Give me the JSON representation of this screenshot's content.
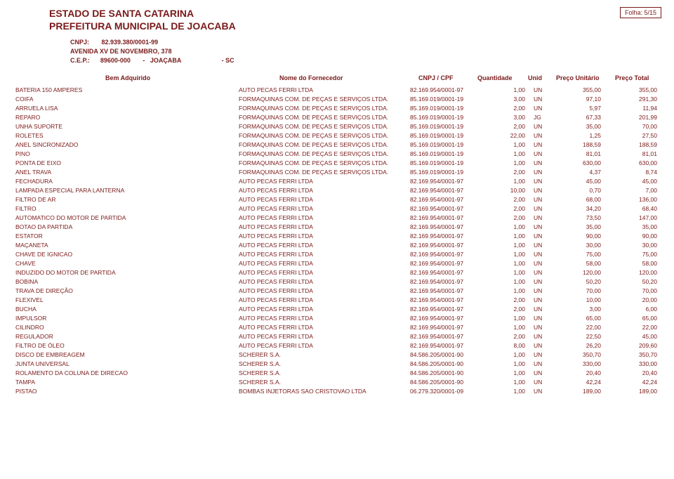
{
  "colors": {
    "text": "#7a1a1a",
    "background": "#ffffff"
  },
  "header": {
    "org_line1": "ESTADO DE SANTA CATARINA",
    "org_line2": "PREFEITURA MUNICIPAL DE JOACABA",
    "folha_label": "Folha: 5/15",
    "cnpj_line": "CNPJ:       82.939.380/0001-99",
    "addr_line": "AVENIDA XV DE NOVEMBRO, 378",
    "cep_line": "C.E.P.:      89600-000       -   JOAÇABA                       - SC"
  },
  "columns": {
    "bem": "Bem Adquirido",
    "forn": "Nome do Fornecedor",
    "cnpj": "CNPJ / CPF",
    "qtd": "Quantidade",
    "unid": "Unid",
    "unit": "Preço Unitário",
    "total": "Preço Total"
  },
  "rows": [
    {
      "bem": "BATERIA 150 AMPERES",
      "forn": "AUTO PECAS FERRI LTDA",
      "cnpj": "82.169.954/0001-97",
      "qtd": "1,00",
      "unid": "UN",
      "unit": "355,00",
      "total": "355,00"
    },
    {
      "bem": "COIFA",
      "forn": "FORMAQUINAS COM. DE PEÇAS E SERVIÇOS LTDA.",
      "cnpj": "85.169.019/0001-19",
      "qtd": "3,00",
      "unid": "UN",
      "unit": "97,10",
      "total": "291,30"
    },
    {
      "bem": "ARRUELA LISA",
      "forn": "FORMAQUINAS COM. DE PEÇAS E SERVIÇOS LTDA.",
      "cnpj": "85.169.019/0001-19",
      "qtd": "2,00",
      "unid": "UN",
      "unit": "5,97",
      "total": "11,94"
    },
    {
      "bem": "REPARO",
      "forn": "FORMAQUINAS COM. DE PEÇAS E SERVIÇOS LTDA.",
      "cnpj": "85.169.019/0001-19",
      "qtd": "3,00",
      "unid": "JG",
      "unit": "67,33",
      "total": "201,99"
    },
    {
      "bem": "UNHA SUPORTE",
      "forn": "FORMAQUINAS COM. DE PEÇAS E SERVIÇOS LTDA.",
      "cnpj": "85.169.019/0001-19",
      "qtd": "2,00",
      "unid": "UN",
      "unit": "35,00",
      "total": "70,00"
    },
    {
      "bem": "ROLETES",
      "forn": "FORMAQUINAS COM. DE PEÇAS E SERVIÇOS LTDA.",
      "cnpj": "85.169.019/0001-19",
      "qtd": "22,00",
      "unid": "UN",
      "unit": "1,25",
      "total": "27,50"
    },
    {
      "bem": "ANEL SINCRONIZADO",
      "forn": "FORMAQUINAS COM. DE PEÇAS E SERVIÇOS LTDA.",
      "cnpj": "85.169.019/0001-19",
      "qtd": "1,00",
      "unid": "UN",
      "unit": "188,59",
      "total": "188,59"
    },
    {
      "bem": "PINO",
      "forn": "FORMAQUINAS COM. DE PEÇAS E SERVIÇOS LTDA.",
      "cnpj": "85.169.019/0001-19",
      "qtd": "1,00",
      "unid": "UN",
      "unit": "81,01",
      "total": "81,01"
    },
    {
      "bem": "PONTA DE EIXO",
      "forn": "FORMAQUINAS COM. DE PEÇAS E SERVIÇOS LTDA.",
      "cnpj": "85.169.019/0001-19",
      "qtd": "1,00",
      "unid": "UN",
      "unit": "630,00",
      "total": "630,00"
    },
    {
      "bem": "ANEL TRAVA",
      "forn": "FORMAQUINAS COM. DE PEÇAS E SERVIÇOS LTDA.",
      "cnpj": "85.169.019/0001-19",
      "qtd": "2,00",
      "unid": "UN",
      "unit": "4,37",
      "total": "8,74"
    },
    {
      "bem": "FECHADURA",
      "forn": "AUTO PECAS FERRI LTDA",
      "cnpj": "82.169.954/0001-97",
      "qtd": "1,00",
      "unid": "UN",
      "unit": "45,00",
      "total": "45,00"
    },
    {
      "bem": "LAMPADA ESPECIAL PARA LANTERNA",
      "forn": "AUTO PECAS FERRI LTDA",
      "cnpj": "82.169.954/0001-97",
      "qtd": "10,00",
      "unid": "UN",
      "unit": "0,70",
      "total": "7,00"
    },
    {
      "bem": "FILTRO DE AR",
      "forn": "AUTO PECAS FERRI LTDA",
      "cnpj": "82.169.954/0001-97",
      "qtd": "2,00",
      "unid": "UN",
      "unit": "68,00",
      "total": "136,00"
    },
    {
      "bem": "FILTRO",
      "forn": "AUTO PECAS FERRI LTDA",
      "cnpj": "82.169.954/0001-97",
      "qtd": "2,00",
      "unid": "UN",
      "unit": "34,20",
      "total": "68,40"
    },
    {
      "bem": "AUTOMATICO DO MOTOR DE PARTIDA",
      "forn": "AUTO PECAS FERRI LTDA",
      "cnpj": "82.169.954/0001-97",
      "qtd": "2,00",
      "unid": "UN",
      "unit": "73,50",
      "total": "147,00"
    },
    {
      "bem": "BOTAO DA PARTIDA",
      "forn": "AUTO PECAS FERRI LTDA",
      "cnpj": "82.169.954/0001-97",
      "qtd": "1,00",
      "unid": "UN",
      "unit": "35,00",
      "total": "35,00"
    },
    {
      "bem": "ESTATOR",
      "forn": "AUTO PECAS FERRI LTDA",
      "cnpj": "82.169.954/0001-97",
      "qtd": "1,00",
      "unid": "UN",
      "unit": "90,00",
      "total": "90,00"
    },
    {
      "bem": "MAÇANETA",
      "forn": "AUTO PECAS FERRI LTDA",
      "cnpj": "82.169.954/0001-97",
      "qtd": "1,00",
      "unid": "UN",
      "unit": "30,00",
      "total": "30,00"
    },
    {
      "bem": "CHAVE DE IGNICAO",
      "forn": "AUTO PECAS FERRI LTDA",
      "cnpj": "82.169.954/0001-97",
      "qtd": "1,00",
      "unid": "UN",
      "unit": "75,00",
      "total": "75,00"
    },
    {
      "bem": "CHAVE",
      "forn": "AUTO PECAS FERRI LTDA",
      "cnpj": "82.169.954/0001-97",
      "qtd": "1,00",
      "unid": "UN",
      "unit": "58,00",
      "total": "58,00"
    },
    {
      "bem": "INDUZIDO DO MOTOR DE PARTIDA",
      "forn": "AUTO PECAS FERRI LTDA",
      "cnpj": "82.169.954/0001-97",
      "qtd": "1,00",
      "unid": "UN",
      "unit": "120,00",
      "total": "120,00"
    },
    {
      "bem": "BOBINA",
      "forn": "AUTO PECAS FERRI LTDA",
      "cnpj": "82.169.954/0001-97",
      "qtd": "1,00",
      "unid": "UN",
      "unit": "50,20",
      "total": "50,20"
    },
    {
      "bem": "TRAVA DE DIREÇÃO",
      "forn": "AUTO PECAS FERRI LTDA",
      "cnpj": "82.169.954/0001-97",
      "qtd": "1,00",
      "unid": "UN",
      "unit": "70,00",
      "total": "70,00"
    },
    {
      "bem": "FLEXIVEL",
      "forn": "AUTO PECAS FERRI LTDA",
      "cnpj": "82.169.954/0001-97",
      "qtd": "2,00",
      "unid": "UN",
      "unit": "10,00",
      "total": "20,00"
    },
    {
      "bem": "BUCHA",
      "forn": "AUTO PECAS FERRI LTDA",
      "cnpj": "82.169.954/0001-97",
      "qtd": "2,00",
      "unid": "UN",
      "unit": "3,00",
      "total": "6,00"
    },
    {
      "bem": "IMPULSOR",
      "forn": "AUTO PECAS FERRI LTDA",
      "cnpj": "82.169.954/0001-97",
      "qtd": "1,00",
      "unid": "UN",
      "unit": "65,00",
      "total": "65,00"
    },
    {
      "bem": "CILINDRO",
      "forn": "AUTO PECAS FERRI LTDA",
      "cnpj": "82.169.954/0001-97",
      "qtd": "1,00",
      "unid": "UN",
      "unit": "22,00",
      "total": "22,00"
    },
    {
      "bem": "REGULADOR",
      "forn": "AUTO PECAS FERRI LTDA",
      "cnpj": "82.169.954/0001-97",
      "qtd": "2,00",
      "unid": "UN",
      "unit": "22,50",
      "total": "45,00"
    },
    {
      "bem": "FILTRO DE ÓLEO",
      "forn": "AUTO PECAS FERRI LTDA",
      "cnpj": "82.169.954/0001-97",
      "qtd": "8,00",
      "unid": "UN",
      "unit": "26,20",
      "total": "209,60"
    },
    {
      "bem": "DISCO DE EMBREAGEM",
      "forn": "SCHERER S.A.",
      "cnpj": "84.586.205/0001-90",
      "qtd": "1,00",
      "unid": "UN",
      "unit": "350,70",
      "total": "350,70"
    },
    {
      "bem": "JUNTA UNIVERSAL",
      "forn": "SCHERER S.A.",
      "cnpj": "84.586.205/0001-90",
      "qtd": "1,00",
      "unid": "UN",
      "unit": "330,00",
      "total": "330,00"
    },
    {
      "bem": "ROLAMENTO DA COLUNA DE DIRECAO",
      "forn": "SCHERER S.A.",
      "cnpj": "84.586.205/0001-90",
      "qtd": "1,00",
      "unid": "UN",
      "unit": "20,40",
      "total": "20,40"
    },
    {
      "bem": "TAMPA",
      "forn": "SCHERER S.A.",
      "cnpj": "84.586.205/0001-90",
      "qtd": "1,00",
      "unid": "UN",
      "unit": "42,24",
      "total": "42,24"
    },
    {
      "bem": "PISTAO",
      "forn": "BOMBAS INJETORAS SAO CRISTOVAO LTDA",
      "cnpj": "06.279.320/0001-09",
      "qtd": "1,00",
      "unid": "UN",
      "unit": "189,00",
      "total": "189,00"
    }
  ]
}
